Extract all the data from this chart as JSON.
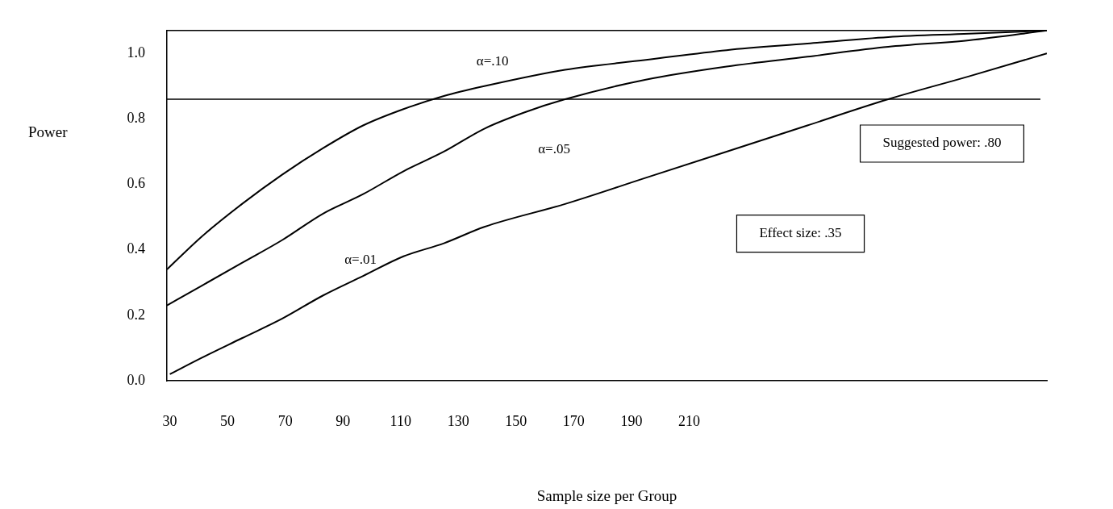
{
  "chart_data": {
    "type": "line",
    "xlabel": "Sample size per Group",
    "ylabel": "Power",
    "xlim": [
      29,
      334
    ],
    "xticks": [
      30,
      50,
      70,
      90,
      110,
      130,
      150,
      170,
      190,
      210
    ],
    "ylim": [
      0,
      1.07
    ],
    "yticks": [
      {
        "value": 0,
        "label": "0.0"
      },
      0.2,
      0.4,
      0.6,
      0.8,
      {
        "value": 1,
        "label": "1.0"
      }
    ],
    "grid": false,
    "legend": false,
    "marker": "none",
    "line_style": "solid",
    "series": [
      {
        "name": "α=.10",
        "color": "#000000",
        "x": [
          29,
          41,
          55,
          69,
          83,
          97,
          111,
          125,
          139,
          167,
          195,
          223,
          251,
          279,
          307,
          334
        ],
        "values": [
          0.34,
          0.44,
          0.54,
          0.63,
          0.71,
          0.78,
          0.83,
          0.87,
          0.9,
          0.95,
          0.98,
          1.01,
          1.03,
          1.05,
          1.06,
          1.07
        ]
      },
      {
        "name": "α=.05",
        "color": "#000000",
        "x": [
          29,
          41,
          55,
          69,
          83,
          97,
          111,
          125,
          139,
          153,
          167,
          195,
          223,
          251,
          279,
          307,
          334
        ],
        "values": [
          0.23,
          0.29,
          0.36,
          0.43,
          0.51,
          0.57,
          0.64,
          0.7,
          0.77,
          0.82,
          0.86,
          0.92,
          0.96,
          0.99,
          1.02,
          1.04,
          1.07
        ]
      },
      {
        "name": "α=.01",
        "color": "#000000",
        "x": [
          30,
          41,
          55,
          69,
          83,
          97,
          111,
          125,
          139,
          167,
          195,
          223,
          251,
          279,
          307,
          334
        ],
        "values": [
          0.02,
          0.07,
          0.13,
          0.19,
          0.26,
          0.32,
          0.38,
          0.42,
          0.47,
          0.54,
          0.62,
          0.7,
          0.78,
          0.86,
          0.93,
          1.0
        ]
      }
    ],
    "ref_lines": [
      {
        "axis": "y",
        "value": 0.86,
        "label": "Suggested power: .80",
        "color": "#000000"
      }
    ],
    "annotations": [
      "Effect size: .35"
    ]
  }
}
